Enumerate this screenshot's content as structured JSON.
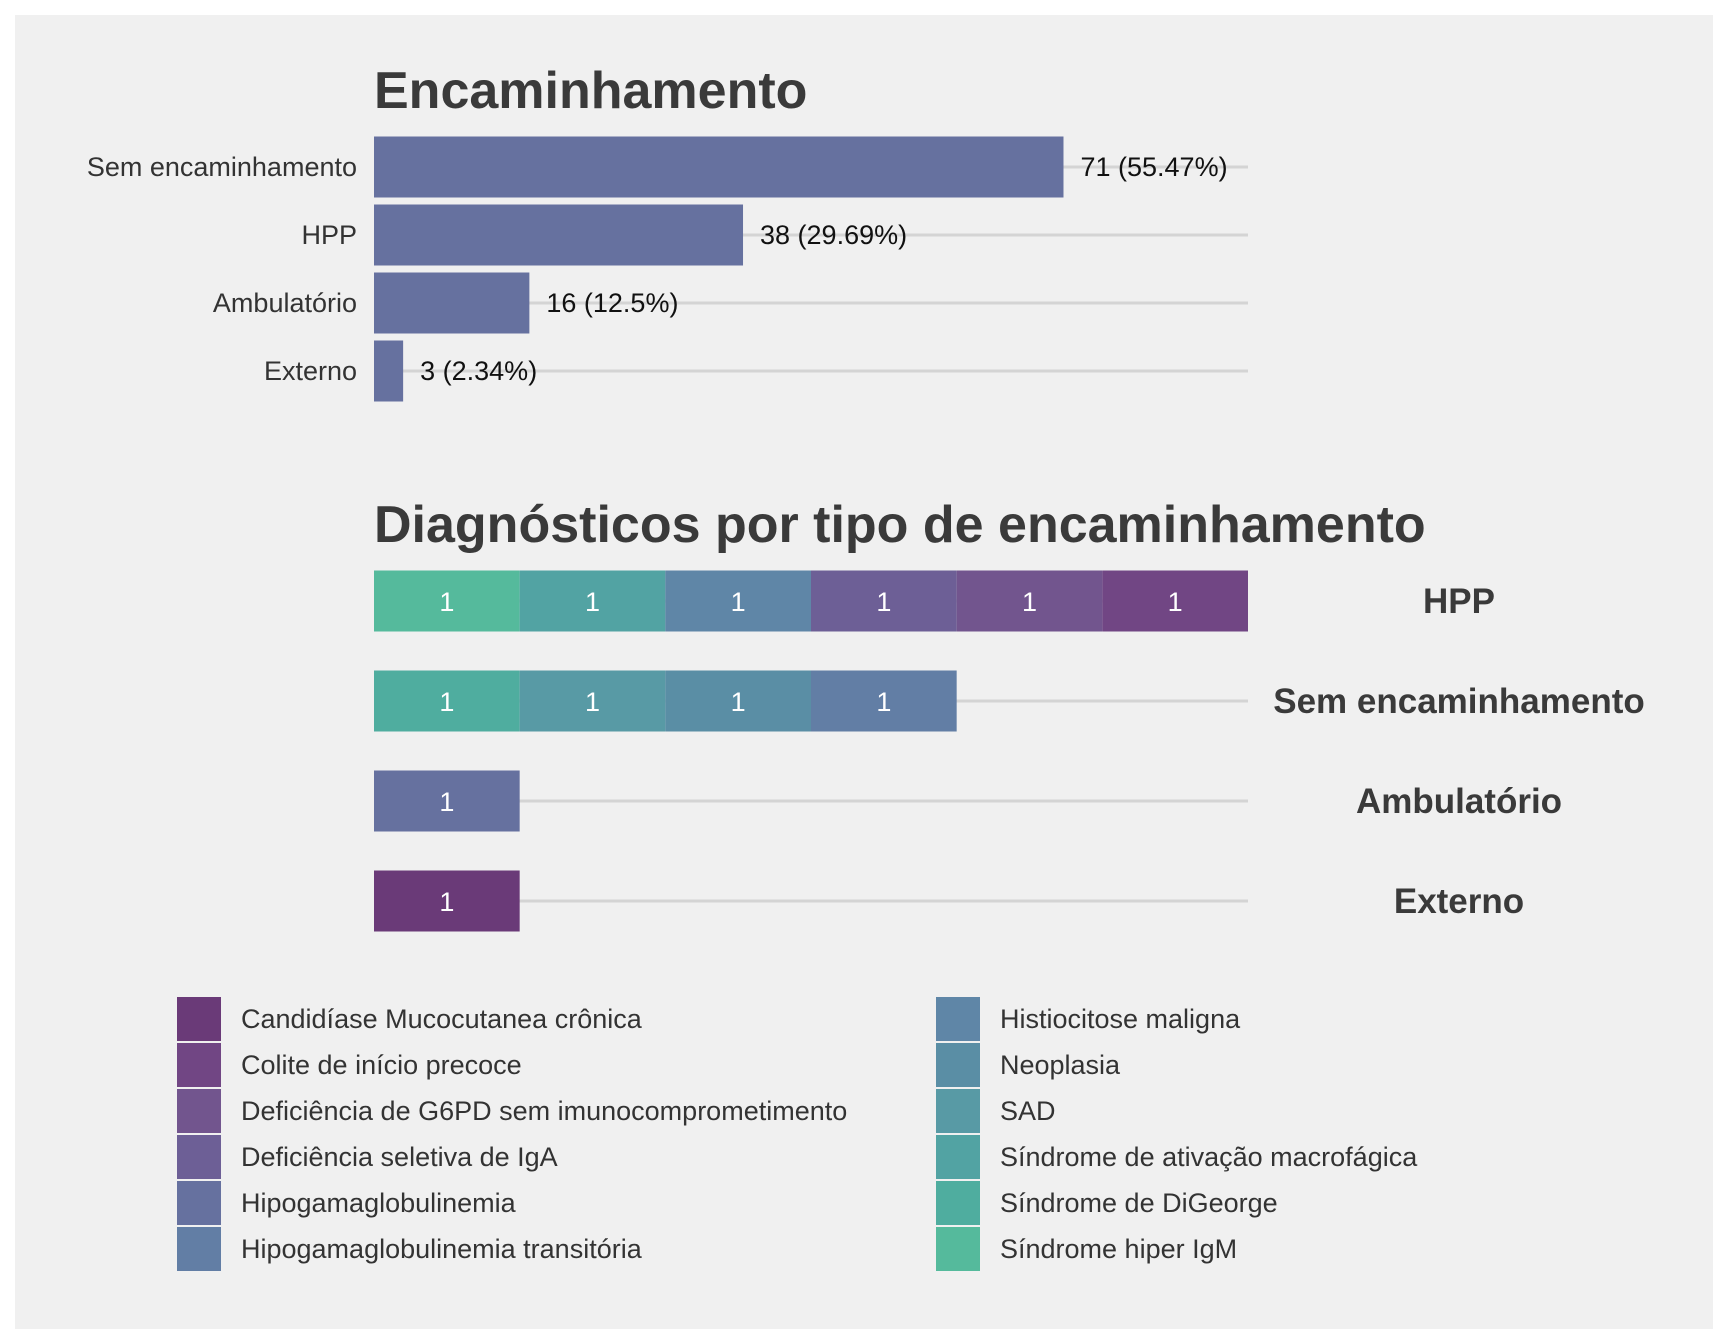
{
  "colors": {
    "background": "#f0f0f0",
    "bar_main": "#66719f",
    "grid": "#d4d4d4",
    "title_text": "#3a3a3a",
    "label_text": "#333333",
    "segment_text": "#ffffff"
  },
  "chart_data": [
    {
      "type": "bar",
      "orientation": "horizontal",
      "title": "Encaminhamento",
      "categories": [
        "Sem encaminhamento",
        "HPP",
        "Ambulatório",
        "Externo"
      ],
      "values": [
        71,
        38,
        16,
        3
      ],
      "data_labels": [
        "71 (55.47%)",
        "38 (29.69%)",
        "16 (12.5%)",
        "3 (2.34%)"
      ],
      "xlim": [
        0,
        90
      ],
      "grid": "horizontal-lines-at-categories"
    },
    {
      "type": "bar",
      "orientation": "horizontal",
      "stacked": true,
      "title": "Diagnósticos por tipo de encaminhamento",
      "categories": [
        "HPP",
        "Sem encaminhamento",
        "Ambulatório",
        "Externo"
      ],
      "xlim": [
        0,
        6
      ],
      "legend_position": "bottom",
      "series": [
        {
          "name": "Candidíase Mucocutanea crônica",
          "color": "#6a3a78",
          "values": [
            0,
            0,
            0,
            1
          ]
        },
        {
          "name": "Colite de início precoce",
          "color": "#714684",
          "values": [
            1,
            0,
            0,
            0
          ]
        },
        {
          "name": "Deficiência de G6PD sem imunocomprometimento",
          "color": "#72558e",
          "values": [
            1,
            0,
            0,
            0
          ]
        },
        {
          "name": "Deficiência seletiva de IgA",
          "color": "#6d5f96",
          "values": [
            1,
            0,
            0,
            0
          ]
        },
        {
          "name": "Hipogamaglobulinemia",
          "color": "#66719f",
          "values": [
            0,
            0,
            1,
            0
          ]
        },
        {
          "name": "Hipogamaglobulinemia transitória",
          "color": "#627ea5",
          "values": [
            0,
            1,
            0,
            0
          ]
        },
        {
          "name": "Histiocitose maligna",
          "color": "#5f86a7",
          "values": [
            1,
            0,
            0,
            0
          ]
        },
        {
          "name": "Neoplasia",
          "color": "#5a8ea5",
          "values": [
            0,
            1,
            0,
            0
          ]
        },
        {
          "name": "SAD",
          "color": "#589aa5",
          "values": [
            0,
            1,
            0,
            0
          ]
        },
        {
          "name": "Síndrome de ativação macrofágica",
          "color": "#52a3a3",
          "values": [
            1,
            0,
            0,
            0
          ]
        },
        {
          "name": "Síndrome de DiGeorge",
          "color": "#4fad9f",
          "values": [
            0,
            1,
            0,
            0
          ]
        },
        {
          "name": "Síndrome hiper IgM",
          "color": "#55ba9c",
          "values": [
            1,
            0,
            0,
            0
          ]
        }
      ],
      "segment_label": "1"
    }
  ]
}
